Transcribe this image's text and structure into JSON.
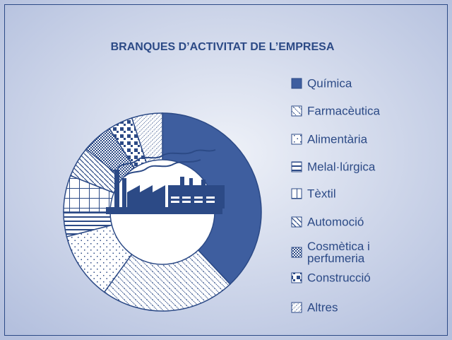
{
  "chart_data": {
    "type": "pie",
    "title": "BRANQUES D’ACTIVITAT DE L’EMPRESA",
    "categories": [
      "Química",
      "Farmacèutica",
      "Alimentària",
      "Melal·lúrgica",
      "Tèxtil",
      "Automoció",
      "Cosmètica i perfumeria",
      "Construcció",
      "Altres"
    ],
    "values": [
      38,
      22,
      11,
      4,
      6,
      5,
      5,
      4,
      5
    ]
  }
}
